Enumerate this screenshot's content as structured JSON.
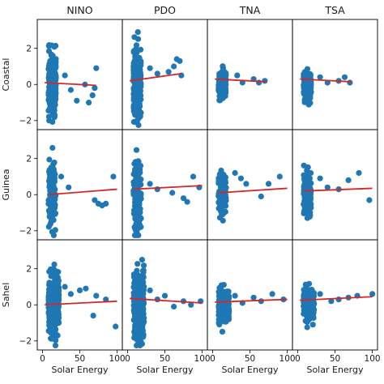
{
  "chart_data": {
    "type": "scatter",
    "layout": "grid 3 rows x 4 columns, shared y axis per row, shared x axis per column",
    "columns": [
      "NINO",
      "PDO",
      "TNA",
      "TSA"
    ],
    "rows": [
      "Coastal",
      "Guinea",
      "Sahel"
    ],
    "xlabel": "Solar Energy",
    "ylim": [
      -2.5,
      3.6
    ],
    "yticks": [
      -2,
      0,
      2
    ],
    "xlim": [
      -7,
      107
    ],
    "xticks": [
      0,
      50,
      100
    ],
    "point_color": "#1f77b4",
    "line_color": "#d62728",
    "grid": false,
    "panels": [
      {
        "row": "Coastal",
        "column": "NINO",
        "n_points": 260,
        "x_core": [
          8,
          18
        ],
        "y_spread": 0.8,
        "fit_line": {
          "x": [
            3,
            72
          ],
          "y": [
            0.1,
            -0.05
          ]
        },
        "outliers": [
          [
            30,
            0.5
          ],
          [
            38,
            -0.3
          ],
          [
            46,
            -0.9
          ],
          [
            57,
            0.0
          ],
          [
            62,
            -1.0
          ],
          [
            67,
            -0.6
          ],
          [
            70,
            -0.2
          ],
          [
            72,
            0.9
          ]
        ]
      },
      {
        "row": "Coastal",
        "column": "PDO",
        "n_points": 260,
        "x_core": [
          8,
          18
        ],
        "y_spread": 0.9,
        "fit_line": {
          "x": [
            3,
            72
          ],
          "y": [
            0.2,
            0.6
          ]
        },
        "outliers": [
          [
            30,
            0.9
          ],
          [
            40,
            0.6
          ],
          [
            55,
            0.7
          ],
          [
            62,
            1.0
          ],
          [
            66,
            1.4
          ],
          [
            70,
            1.3
          ],
          [
            72,
            0.5
          ]
        ]
      },
      {
        "row": "Coastal",
        "column": "TNA",
        "n_points": 240,
        "x_core": [
          8,
          18
        ],
        "y_spread": 0.35,
        "fit_line": {
          "x": [
            3,
            72
          ],
          "y": [
            0.3,
            0.15
          ]
        },
        "outliers": [
          [
            33,
            0.5
          ],
          [
            40,
            0.1
          ],
          [
            55,
            0.3
          ],
          [
            62,
            0.1
          ],
          [
            70,
            0.2
          ]
        ]
      },
      {
        "row": "Coastal",
        "column": "TSA",
        "n_points": 240,
        "x_core": [
          8,
          18
        ],
        "y_spread": 0.35,
        "fit_line": {
          "x": [
            3,
            72
          ],
          "y": [
            0.3,
            0.15
          ]
        },
        "outliers": [
          [
            30,
            0.4
          ],
          [
            40,
            0.1
          ],
          [
            55,
            0.2
          ],
          [
            63,
            0.4
          ],
          [
            70,
            0.1
          ]
        ]
      },
      {
        "row": "Guinea",
        "column": "NINO",
        "n_points": 130,
        "x_core": [
          8,
          18
        ],
        "y_spread": 0.9,
        "fit_line": {
          "x": [
            8,
            100
          ],
          "y": [
            0.0,
            0.3
          ]
        },
        "outliers": [
          [
            25,
            1.0
          ],
          [
            35,
            0.4
          ],
          [
            70,
            -0.3
          ],
          [
            75,
            -0.5
          ],
          [
            80,
            -0.6
          ],
          [
            85,
            -0.5
          ],
          [
            95,
            1.0
          ]
        ]
      },
      {
        "row": "Guinea",
        "column": "PDO",
        "n_points": 130,
        "x_core": [
          8,
          18
        ],
        "y_spread": 1.0,
        "fit_line": {
          "x": [
            8,
            100
          ],
          "y": [
            0.3,
            0.5
          ]
        },
        "outliers": [
          [
            30,
            0.6
          ],
          [
            40,
            0.3
          ],
          [
            60,
            0.1
          ],
          [
            75,
            -0.2
          ],
          [
            80,
            -0.4
          ],
          [
            88,
            1.0
          ],
          [
            96,
            0.4
          ]
        ]
      },
      {
        "row": "Guinea",
        "column": "TNA",
        "n_points": 110,
        "x_core": [
          8,
          18
        ],
        "y_spread": 0.6,
        "fit_line": {
          "x": [
            8,
            100
          ],
          "y": [
            0.1,
            0.35
          ]
        },
        "outliers": [
          [
            30,
            1.2
          ],
          [
            38,
            0.9
          ],
          [
            45,
            0.6
          ],
          [
            65,
            -0.1
          ],
          [
            75,
            0.6
          ],
          [
            90,
            1.0
          ]
        ]
      },
      {
        "row": "Guinea",
        "column": "TSA",
        "n_points": 110,
        "x_core": [
          8,
          18
        ],
        "y_spread": 0.6,
        "fit_line": {
          "x": [
            8,
            100
          ],
          "y": [
            0.2,
            0.35
          ]
        },
        "outliers": [
          [
            30,
            0.9
          ],
          [
            40,
            0.4
          ],
          [
            55,
            0.3
          ],
          [
            68,
            0.8
          ],
          [
            82,
            1.2
          ],
          [
            96,
            -0.3
          ]
        ]
      },
      {
        "row": "Sahel",
        "column": "NINO",
        "n_points": 280,
        "x_core": [
          8,
          22
        ],
        "y_spread": 0.85,
        "fit_line": {
          "x": [
            3,
            100
          ],
          "y": [
            0.0,
            0.2
          ]
        },
        "outliers": [
          [
            30,
            1.0
          ],
          [
            38,
            0.6
          ],
          [
            50,
            0.8
          ],
          [
            58,
            0.9
          ],
          [
            68,
            -0.6
          ],
          [
            72,
            0.5
          ],
          [
            85,
            0.3
          ],
          [
            98,
            -1.2
          ]
        ]
      },
      {
        "row": "Sahel",
        "column": "PDO",
        "n_points": 280,
        "x_core": [
          8,
          22
        ],
        "y_spread": 1.0,
        "fit_line": {
          "x": [
            3,
            100
          ],
          "y": [
            0.35,
            0.1
          ]
        },
        "outliers": [
          [
            30,
            0.8
          ],
          [
            40,
            0.3
          ],
          [
            50,
            0.5
          ],
          [
            62,
            -0.1
          ],
          [
            75,
            0.2
          ],
          [
            85,
            0.0
          ],
          [
            98,
            0.2
          ]
        ]
      },
      {
        "row": "Sahel",
        "column": "TNA",
        "n_points": 260,
        "x_core": [
          8,
          22
        ],
        "y_spread": 0.4,
        "fit_line": {
          "x": [
            3,
            100
          ],
          "y": [
            0.15,
            0.3
          ]
        },
        "outliers": [
          [
            30,
            0.5
          ],
          [
            40,
            0.1
          ],
          [
            55,
            0.4
          ],
          [
            65,
            0.2
          ],
          [
            80,
            0.6
          ],
          [
            95,
            0.3
          ]
        ]
      },
      {
        "row": "Sahel",
        "column": "TSA",
        "n_points": 260,
        "x_core": [
          8,
          22
        ],
        "y_spread": 0.4,
        "fit_line": {
          "x": [
            3,
            100
          ],
          "y": [
            0.25,
            0.45
          ]
        },
        "outliers": [
          [
            30,
            0.6
          ],
          [
            45,
            0.2
          ],
          [
            55,
            0.3
          ],
          [
            68,
            0.4
          ],
          [
            80,
            0.5
          ],
          [
            100,
            0.6
          ]
        ]
      }
    ]
  }
}
